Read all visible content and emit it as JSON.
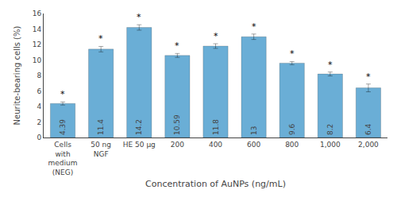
{
  "chart_data": {
    "type": "bar",
    "categories": [
      "Cells\nwith\nmedium\n(NEG)",
      "50 ng\nNGF",
      "HE 50 μg",
      "200",
      "400",
      "600",
      "800",
      "1,000",
      "2,000"
    ],
    "values": [
      4.39,
      11.4,
      14.2,
      10.59,
      11.8,
      13,
      9.6,
      8.2,
      6.4
    ],
    "errors": [
      0.2,
      0.35,
      0.35,
      0.25,
      0.3,
      0.35,
      0.2,
      0.25,
      0.5
    ],
    "color": "#6aaed6",
    "xlabel": "Concentration of AuNPs (ng/mL)",
    "ylabel": "Neurite-bearing cells (%)",
    "ylim": [
      0,
      16
    ],
    "yticks": [
      0,
      2,
      4,
      6,
      8,
      10,
      12,
      14,
      16
    ],
    "grid": false,
    "data_labels": true,
    "annotations": [
      {
        "text": "*",
        "category": "Cells\nwith\nmedium\n(NEG)"
      },
      {
        "text": "*",
        "category": "50 ng\nNGF"
      },
      {
        "text": "*",
        "category": "HE 50 μg"
      },
      {
        "text": "*",
        "category": "200"
      },
      {
        "text": "*",
        "category": "400"
      },
      {
        "text": "*",
        "category": "600"
      },
      {
        "text": "*",
        "category": "800"
      },
      {
        "text": "*",
        "category": "1,000"
      },
      {
        "text": "*",
        "category": "2,000"
      }
    ]
  }
}
